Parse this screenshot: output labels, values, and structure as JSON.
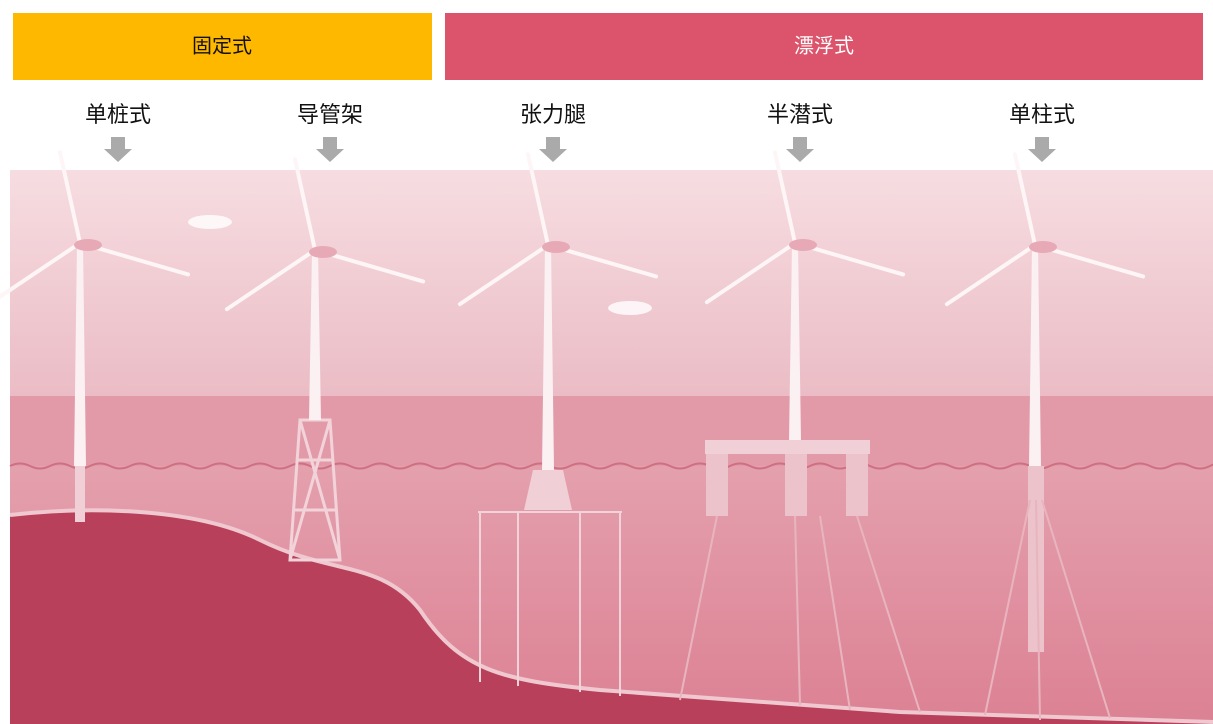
{
  "header": {
    "fixed": "固定式",
    "floating": "漂浮式"
  },
  "types": [
    "单桩式",
    "导管架",
    "张力腿",
    "半潜式",
    "单柱式"
  ]
}
